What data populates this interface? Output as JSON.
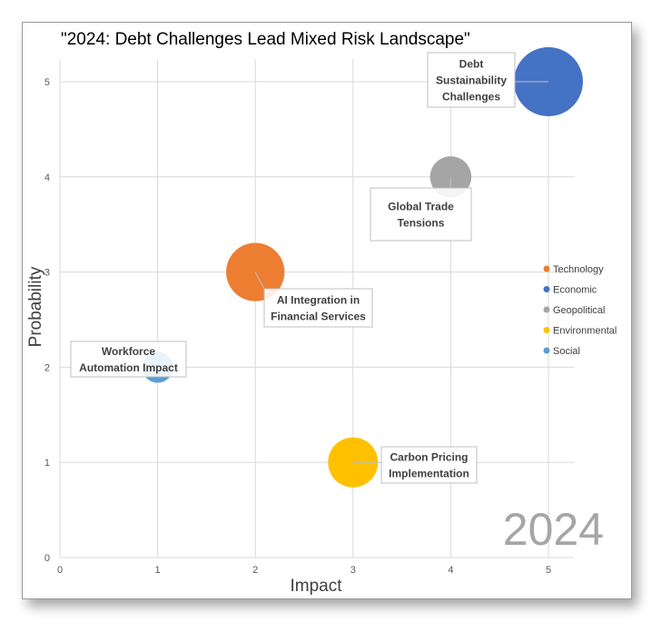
{
  "chart_data": {
    "type": "bubble",
    "title": "\"2024: Debt Challenges Lead Mixed Risk Landscape\"",
    "xlabel": "Impact",
    "ylabel": "Probability",
    "xlim": [
      0,
      5
    ],
    "ylim": [
      0,
      5
    ],
    "x_ticks": [
      "0",
      "1",
      "2",
      "3",
      "4",
      "5"
    ],
    "y_ticks": [
      "0",
      "1",
      "2",
      "3",
      "4",
      "5"
    ],
    "grid": true,
    "legend_position": "right",
    "watermark": "2024",
    "series": [
      {
        "name": "Technology",
        "color": "#ED7D31",
        "points": [
          {
            "label": "AI Integration in Financial Services",
            "x": 2,
            "y": 3,
            "size": 3
          }
        ]
      },
      {
        "name": "Economic",
        "color": "#4472C4",
        "points": [
          {
            "label": "Debt Sustainability Challenges",
            "x": 5,
            "y": 5,
            "size": 4.2
          }
        ]
      },
      {
        "name": "Geopolitical",
        "color": "#A5A5A5",
        "points": [
          {
            "label": "Global Trade Tensions",
            "x": 4,
            "y": 4,
            "size": 1.5
          }
        ]
      },
      {
        "name": "Environmental",
        "color": "#FFC000",
        "points": [
          {
            "label": "Carbon Pricing Implementation",
            "x": 3,
            "y": 1,
            "size": 2.2
          }
        ]
      },
      {
        "name": "Social",
        "color": "#5B9BD5",
        "points": [
          {
            "label": "Workforce Automation Impact",
            "x": 1,
            "y": 2,
            "size": 0.85
          }
        ]
      }
    ]
  }
}
